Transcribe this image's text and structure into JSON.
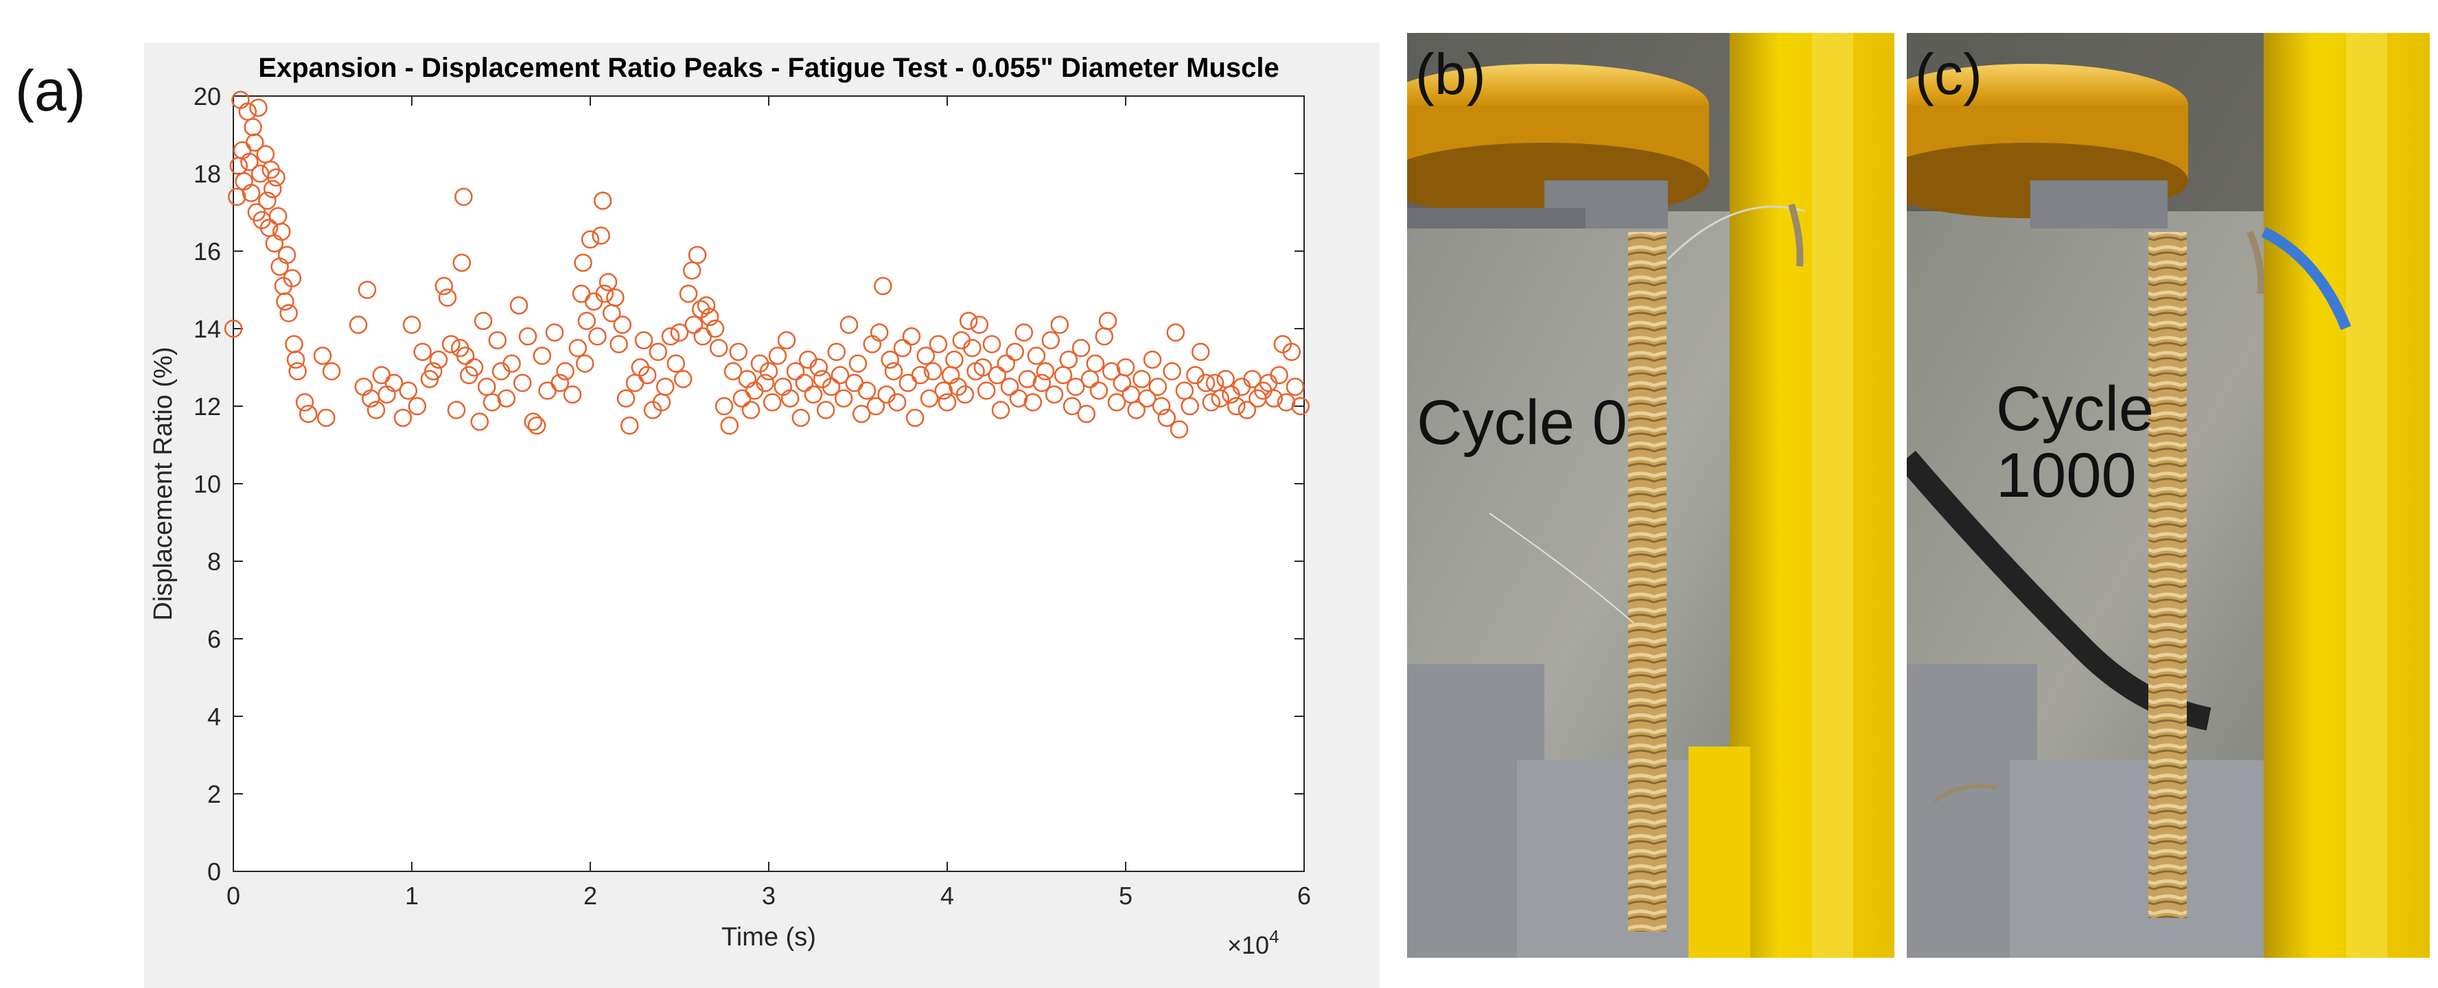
{
  "panels": {
    "a": "(a)",
    "b": "(b)",
    "c": "(c)"
  },
  "chart_data": {
    "type": "scatter",
    "title": "Expansion - Displacement Ratio Peaks - Fatigue Test - 0.055\" Diameter Muscle",
    "xlabel": "Time (s)",
    "ylabel": "Displacement Ratio (%)",
    "x_multiplier_label": "×10",
    "x_multiplier_exp": "4",
    "xlim": [
      0,
      6
    ],
    "ylim": [
      0,
      20
    ],
    "x_ticks": [
      "0",
      "1",
      "2",
      "3",
      "4",
      "5",
      "6"
    ],
    "y_ticks": [
      "0",
      "2",
      "4",
      "6",
      "8",
      "10",
      "12",
      "14",
      "16",
      "18",
      "20"
    ],
    "marker": "open-circle",
    "color": "#e8622c",
    "series": [
      {
        "name": "Displacement ratio peaks",
        "points": [
          [
            0.0,
            14.0
          ],
          [
            0.02,
            17.4
          ],
          [
            0.03,
            18.2
          ],
          [
            0.04,
            19.9
          ],
          [
            0.05,
            18.6
          ],
          [
            0.06,
            17.8
          ],
          [
            0.08,
            19.6
          ],
          [
            0.09,
            18.3
          ],
          [
            0.1,
            17.5
          ],
          [
            0.11,
            19.2
          ],
          [
            0.12,
            18.8
          ],
          [
            0.13,
            17.0
          ],
          [
            0.14,
            19.7
          ],
          [
            0.15,
            18.0
          ],
          [
            0.16,
            16.8
          ],
          [
            0.18,
            18.5
          ],
          [
            0.19,
            17.3
          ],
          [
            0.2,
            16.6
          ],
          [
            0.21,
            18.1
          ],
          [
            0.22,
            17.6
          ],
          [
            0.23,
            16.2
          ],
          [
            0.24,
            17.9
          ],
          [
            0.25,
            16.9
          ],
          [
            0.26,
            15.6
          ],
          [
            0.27,
            16.5
          ],
          [
            0.28,
            15.1
          ],
          [
            0.29,
            14.7
          ],
          [
            0.3,
            15.9
          ],
          [
            0.31,
            14.4
          ],
          [
            0.33,
            15.3
          ],
          [
            0.34,
            13.6
          ],
          [
            0.35,
            13.2
          ],
          [
            0.36,
            12.9
          ],
          [
            0.4,
            12.1
          ],
          [
            0.42,
            11.8
          ],
          [
            0.5,
            13.3
          ],
          [
            0.52,
            11.7
          ],
          [
            0.55,
            12.9
          ],
          [
            0.7,
            14.1
          ],
          [
            0.73,
            12.5
          ],
          [
            0.75,
            15.0
          ],
          [
            0.77,
            12.2
          ],
          [
            0.8,
            11.9
          ],
          [
            0.83,
            12.8
          ],
          [
            0.86,
            12.3
          ],
          [
            0.9,
            12.6
          ],
          [
            0.95,
            11.7
          ],
          [
            0.98,
            12.4
          ],
          [
            1.0,
            14.1
          ],
          [
            1.03,
            12.0
          ],
          [
            1.06,
            13.4
          ],
          [
            1.1,
            12.7
          ],
          [
            1.12,
            12.9
          ],
          [
            1.15,
            13.2
          ],
          [
            1.18,
            15.1
          ],
          [
            1.2,
            14.8
          ],
          [
            1.22,
            13.6
          ],
          [
            1.25,
            11.9
          ],
          [
            1.27,
            13.5
          ],
          [
            1.28,
            15.7
          ],
          [
            1.29,
            17.4
          ],
          [
            1.3,
            13.3
          ],
          [
            1.32,
            12.8
          ],
          [
            1.35,
            13.0
          ],
          [
            1.38,
            11.6
          ],
          [
            1.4,
            14.2
          ],
          [
            1.42,
            12.5
          ],
          [
            1.45,
            12.1
          ],
          [
            1.48,
            13.7
          ],
          [
            1.5,
            12.9
          ],
          [
            1.53,
            12.2
          ],
          [
            1.56,
            13.1
          ],
          [
            1.6,
            14.6
          ],
          [
            1.62,
            12.6
          ],
          [
            1.65,
            13.8
          ],
          [
            1.68,
            11.6
          ],
          [
            1.7,
            11.5
          ],
          [
            1.73,
            13.3
          ],
          [
            1.76,
            12.4
          ],
          [
            1.8,
            13.9
          ],
          [
            1.83,
            12.6
          ],
          [
            1.86,
            12.9
          ],
          [
            1.9,
            12.3
          ],
          [
            1.93,
            13.5
          ],
          [
            1.95,
            14.9
          ],
          [
            1.96,
            15.7
          ],
          [
            1.97,
            13.1
          ],
          [
            1.98,
            14.2
          ],
          [
            2.0,
            16.3
          ],
          [
            2.02,
            14.7
          ],
          [
            2.04,
            13.8
          ],
          [
            2.06,
            16.4
          ],
          [
            2.07,
            17.3
          ],
          [
            2.08,
            14.9
          ],
          [
            2.1,
            15.2
          ],
          [
            2.12,
            14.4
          ],
          [
            2.14,
            14.8
          ],
          [
            2.16,
            13.6
          ],
          [
            2.18,
            14.1
          ],
          [
            2.2,
            12.2
          ],
          [
            2.22,
            11.5
          ],
          [
            2.25,
            12.6
          ],
          [
            2.28,
            13.0
          ],
          [
            2.3,
            13.7
          ],
          [
            2.32,
            12.8
          ],
          [
            2.35,
            11.9
          ],
          [
            2.38,
            13.4
          ],
          [
            2.4,
            12.1
          ],
          [
            2.42,
            12.5
          ],
          [
            2.45,
            13.8
          ],
          [
            2.48,
            13.1
          ],
          [
            2.5,
            13.9
          ],
          [
            2.52,
            12.7
          ],
          [
            2.55,
            14.9
          ],
          [
            2.57,
            15.5
          ],
          [
            2.58,
            14.1
          ],
          [
            2.6,
            15.9
          ],
          [
            2.62,
            14.5
          ],
          [
            2.63,
            13.8
          ],
          [
            2.65,
            14.6
          ],
          [
            2.67,
            14.3
          ],
          [
            2.7,
            14.0
          ],
          [
            2.72,
            13.5
          ],
          [
            2.75,
            12.0
          ],
          [
            2.78,
            11.5
          ],
          [
            2.8,
            12.9
          ],
          [
            2.83,
            13.4
          ],
          [
            2.85,
            12.2
          ],
          [
            2.88,
            12.7
          ],
          [
            2.9,
            11.9
          ],
          [
            2.92,
            12.4
          ],
          [
            2.95,
            13.1
          ],
          [
            2.98,
            12.6
          ],
          [
            3.0,
            12.9
          ],
          [
            3.02,
            12.1
          ],
          [
            3.05,
            13.3
          ],
          [
            3.08,
            12.5
          ],
          [
            3.1,
            13.7
          ],
          [
            3.12,
            12.2
          ],
          [
            3.15,
            12.9
          ],
          [
            3.18,
            11.7
          ],
          [
            3.2,
            12.6
          ],
          [
            3.22,
            13.2
          ],
          [
            3.25,
            12.3
          ],
          [
            3.28,
            13.0
          ],
          [
            3.3,
            12.7
          ],
          [
            3.32,
            11.9
          ],
          [
            3.35,
            12.5
          ],
          [
            3.38,
            13.4
          ],
          [
            3.4,
            12.8
          ],
          [
            3.42,
            12.2
          ],
          [
            3.45,
            14.1
          ],
          [
            3.48,
            12.6
          ],
          [
            3.5,
            13.1
          ],
          [
            3.52,
            11.8
          ],
          [
            3.55,
            12.4
          ],
          [
            3.58,
            13.6
          ],
          [
            3.6,
            12.0
          ],
          [
            3.62,
            13.9
          ],
          [
            3.64,
            15.1
          ],
          [
            3.66,
            12.3
          ],
          [
            3.68,
            13.2
          ],
          [
            3.7,
            12.9
          ],
          [
            3.72,
            12.1
          ],
          [
            3.75,
            13.5
          ],
          [
            3.78,
            12.6
          ],
          [
            3.8,
            13.8
          ],
          [
            3.82,
            11.7
          ],
          [
            3.85,
            12.8
          ],
          [
            3.88,
            13.3
          ],
          [
            3.9,
            12.2
          ],
          [
            3.92,
            12.9
          ],
          [
            3.95,
            13.6
          ],
          [
            3.98,
            12.4
          ],
          [
            4.0,
            12.1
          ],
          [
            4.02,
            12.8
          ],
          [
            4.04,
            13.2
          ],
          [
            4.06,
            12.5
          ],
          [
            4.08,
            13.7
          ],
          [
            4.1,
            12.3
          ],
          [
            4.12,
            14.2
          ],
          [
            4.14,
            13.5
          ],
          [
            4.16,
            12.9
          ],
          [
            4.18,
            14.1
          ],
          [
            4.2,
            13.0
          ],
          [
            4.22,
            12.4
          ],
          [
            4.25,
            13.6
          ],
          [
            4.28,
            12.8
          ],
          [
            4.3,
            11.9
          ],
          [
            4.33,
            13.1
          ],
          [
            4.35,
            12.5
          ],
          [
            4.38,
            13.4
          ],
          [
            4.4,
            12.2
          ],
          [
            4.43,
            13.9
          ],
          [
            4.45,
            12.7
          ],
          [
            4.48,
            12.1
          ],
          [
            4.5,
            13.3
          ],
          [
            4.53,
            12.6
          ],
          [
            4.55,
            12.9
          ],
          [
            4.58,
            13.7
          ],
          [
            4.6,
            12.3
          ],
          [
            4.63,
            14.1
          ],
          [
            4.65,
            12.8
          ],
          [
            4.68,
            13.2
          ],
          [
            4.7,
            12.0
          ],
          [
            4.72,
            12.5
          ],
          [
            4.75,
            13.5
          ],
          [
            4.78,
            11.8
          ],
          [
            4.8,
            12.7
          ],
          [
            4.83,
            13.1
          ],
          [
            4.85,
            12.4
          ],
          [
            4.88,
            13.8
          ],
          [
            4.9,
            14.2
          ],
          [
            4.92,
            12.9
          ],
          [
            4.95,
            12.1
          ],
          [
            4.98,
            12.6
          ],
          [
            5.0,
            13.0
          ],
          [
            5.03,
            12.3
          ],
          [
            5.06,
            11.9
          ],
          [
            5.09,
            12.7
          ],
          [
            5.12,
            12.2
          ],
          [
            5.15,
            13.2
          ],
          [
            5.18,
            12.5
          ],
          [
            5.2,
            12.0
          ],
          [
            5.23,
            11.7
          ],
          [
            5.26,
            12.9
          ],
          [
            5.28,
            13.9
          ],
          [
            5.3,
            11.4
          ],
          [
            5.33,
            12.4
          ],
          [
            5.36,
            12.0
          ],
          [
            5.39,
            12.8
          ],
          [
            5.42,
            13.4
          ],
          [
            5.45,
            12.6
          ],
          [
            5.48,
            12.1
          ],
          [
            5.5,
            12.6
          ],
          [
            5.53,
            12.2
          ],
          [
            5.56,
            12.7
          ],
          [
            5.59,
            12.3
          ],
          [
            5.62,
            12.0
          ],
          [
            5.65,
            12.5
          ],
          [
            5.68,
            11.9
          ],
          [
            5.71,
            12.7
          ],
          [
            5.74,
            12.2
          ],
          [
            5.77,
            12.4
          ],
          [
            5.8,
            12.6
          ],
          [
            5.83,
            12.2
          ],
          [
            5.86,
            12.8
          ],
          [
            5.88,
            13.6
          ],
          [
            5.9,
            12.1
          ],
          [
            5.93,
            13.4
          ],
          [
            5.95,
            12.5
          ],
          [
            5.98,
            12.0
          ]
        ]
      }
    ]
  },
  "photo_b": {
    "label": "(b)",
    "caption": "Cycle 0"
  },
  "photo_c": {
    "label": "(c)",
    "caption_line1": "Cycle",
    "caption_line2": "1000"
  }
}
